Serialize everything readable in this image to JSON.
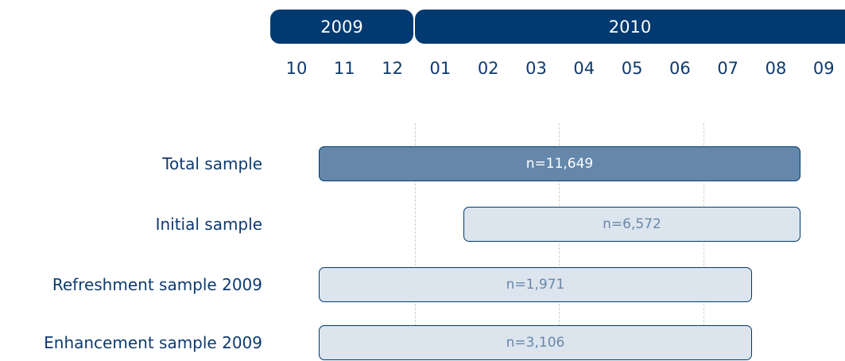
{
  "years": [
    "2009",
    "2010"
  ],
  "months": [
    "10",
    "11",
    "12",
    "01",
    "02",
    "03",
    "04",
    "05",
    "06",
    "07",
    "08",
    "09"
  ],
  "rows": [
    {
      "label": "Total sample",
      "text": "n=11,649"
    },
    {
      "label": "Initial sample",
      "text": "n=6,572"
    },
    {
      "label": "Refreshment sample 2009",
      "text": "n=1,971"
    },
    {
      "label": "Enhancement sample 2009",
      "text": "n=3,106"
    }
  ]
}
